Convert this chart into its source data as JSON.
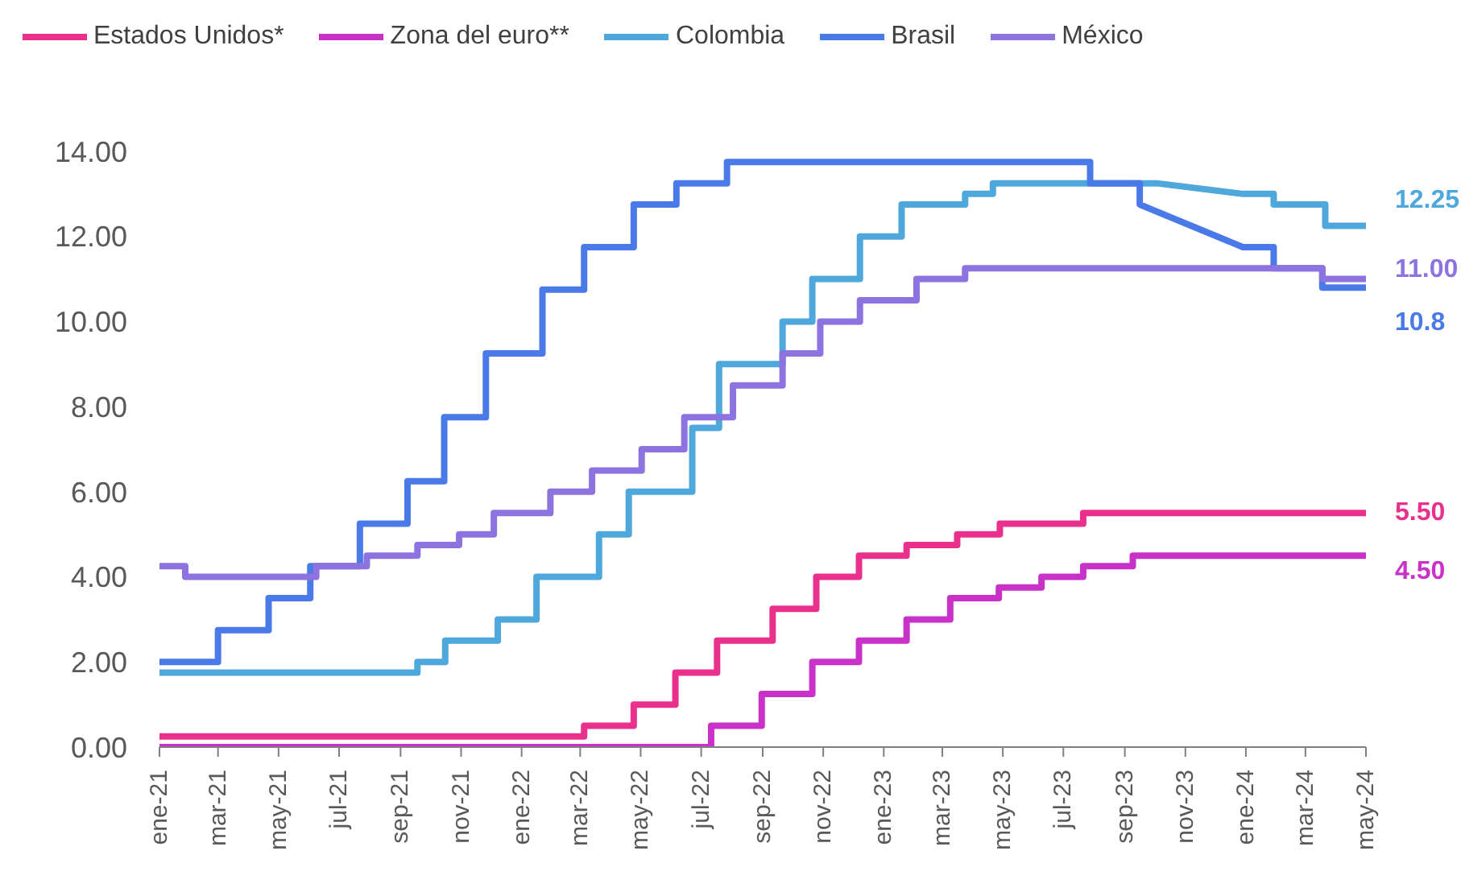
{
  "chart_data": {
    "type": "line",
    "legend": "top",
    "line_style": "solid",
    "xlim": [
      "2021-01-01",
      "2024-05-01"
    ],
    "xticks": [
      {
        "value": "2021-01-01",
        "label": "ene-21"
      },
      {
        "value": "2021-03-01",
        "label": "mar-21"
      },
      {
        "value": "2021-05-01",
        "label": "may-21"
      },
      {
        "value": "2021-07-01",
        "label": "jul-21"
      },
      {
        "value": "2021-09-01",
        "label": "sep-21"
      },
      {
        "value": "2021-11-01",
        "label": "nov-21"
      },
      {
        "value": "2022-01-01",
        "label": "ene-22"
      },
      {
        "value": "2022-03-01",
        "label": "mar-22"
      },
      {
        "value": "2022-05-01",
        "label": "may-22"
      },
      {
        "value": "2022-07-01",
        "label": "jul-22"
      },
      {
        "value": "2022-09-01",
        "label": "sep-22"
      },
      {
        "value": "2022-11-01",
        "label": "nov-22"
      },
      {
        "value": "2023-01-01",
        "label": "ene-23"
      },
      {
        "value": "2023-03-01",
        "label": "mar-23"
      },
      {
        "value": "2023-05-01",
        "label": "may-23"
      },
      {
        "value": "2023-07-01",
        "label": "jul-23"
      },
      {
        "value": "2023-09-01",
        "label": "sep-23"
      },
      {
        "value": "2023-11-01",
        "label": "nov-23"
      },
      {
        "value": "2024-01-01",
        "label": "ene-24"
      },
      {
        "value": "2024-03-01",
        "label": "mar-24"
      },
      {
        "value": "2024-05-01",
        "label": "may-24"
      }
    ],
    "ylim": [
      0,
      14
    ],
    "yticks": [
      {
        "value": 0,
        "label": "0.00"
      },
      {
        "value": 2,
        "label": "2.00"
      },
      {
        "value": 4,
        "label": "4.00"
      },
      {
        "value": 6,
        "label": "6.00"
      },
      {
        "value": 8,
        "label": "8.00"
      },
      {
        "value": 10,
        "label": "10.00"
      },
      {
        "value": 12,
        "label": "12.00"
      },
      {
        "value": 14,
        "label": "14.00"
      }
    ],
    "series": [
      {
        "name": "Estados Unidos*",
        "color": "#e8308c",
        "x": [
          "2021-01-01",
          "2022-03-05",
          "2022-03-05",
          "2022-04-24",
          "2022-04-24",
          "2022-06-05",
          "2022-06-05",
          "2022-07-17",
          "2022-07-17",
          "2022-09-11",
          "2022-09-11",
          "2022-10-25",
          "2022-10-25",
          "2022-12-07",
          "2022-12-07",
          "2023-01-24",
          "2023-01-24",
          "2023-03-16",
          "2023-03-16",
          "2023-04-28",
          "2023-04-28",
          "2023-07-21",
          "2023-07-21",
          "2024-05-01"
        ],
        "values": [
          0.25,
          0.25,
          0.5,
          0.5,
          1,
          1,
          1.75,
          1.75,
          2.5,
          2.5,
          3.25,
          3.25,
          4,
          4,
          4.5,
          4.5,
          4.75,
          4.75,
          5,
          5,
          5.25,
          5.25,
          5.5,
          5.5
        ],
        "value_labels": [
          null,
          null,
          null,
          null,
          null,
          null,
          null,
          null,
          null,
          null,
          null,
          null,
          null,
          null,
          null,
          null,
          null,
          null,
          null,
          null,
          null,
          null,
          null,
          "5.50"
        ]
      },
      {
        "name": "Zona del euro**",
        "color": "#c832c8",
        "x": [
          "2021-01-01",
          "2022-07-11",
          "2022-07-11",
          "2022-08-31",
          "2022-08-31",
          "2022-10-21",
          "2022-10-21",
          "2022-12-07",
          "2022-12-07",
          "2023-01-24",
          "2023-01-24",
          "2023-03-09",
          "2023-03-09",
          "2023-04-27",
          "2023-04-27",
          "2023-06-09",
          "2023-06-09",
          "2023-07-21",
          "2023-07-21",
          "2023-09-09",
          "2023-09-09",
          "2024-05-01"
        ],
        "values": [
          0,
          0,
          0.5,
          0.5,
          1.25,
          1.25,
          2,
          2,
          2.5,
          2.5,
          3,
          3,
          3.5,
          3.5,
          3.75,
          3.75,
          4,
          4,
          4.25,
          4.25,
          4.5,
          4.5
        ],
        "value_labels": [
          null,
          null,
          null,
          null,
          null,
          null,
          null,
          null,
          null,
          null,
          null,
          null,
          null,
          null,
          null,
          null,
          null,
          null,
          null,
          null,
          null,
          "4.50"
        ]
      },
      {
        "name": "Colombia",
        "color": "#4fa8dc",
        "x": [
          "2021-01-01",
          "2021-09-18",
          "2021-09-18",
          "2021-10-16",
          "2021-10-16",
          "2021-12-08",
          "2021-12-08",
          "2022-01-16",
          "2022-01-16",
          "2022-03-20",
          "2022-03-20",
          "2022-04-19",
          "2022-04-19",
          "2022-06-22",
          "2022-06-22",
          "2022-07-19",
          "2022-07-19",
          "2022-09-21",
          "2022-09-21",
          "2022-10-21",
          "2022-10-21",
          "2022-12-08",
          "2022-12-08",
          "2023-01-19",
          "2023-01-19",
          "2023-03-24",
          "2023-03-24",
          "2023-04-21",
          "2023-04-21",
          "2023-10-03",
          "2023-12-29",
          "2024-01-29",
          "2024-01-29",
          "2024-03-21",
          "2024-03-21",
          "2024-05-01"
        ],
        "values": [
          1.75,
          1.75,
          2,
          2,
          2.5,
          2.5,
          3,
          3,
          4,
          4,
          5,
          5,
          6,
          6,
          7.5,
          7.5,
          9,
          9,
          10,
          10,
          11,
          11,
          12,
          12,
          12.75,
          12.75,
          13,
          13,
          13.25,
          13.25,
          13,
          13,
          12.75,
          12.75,
          12.25,
          12.25
        ],
        "value_labels": [
          null,
          null,
          null,
          null,
          null,
          null,
          null,
          null,
          null,
          null,
          null,
          null,
          null,
          null,
          null,
          null,
          null,
          null,
          null,
          null,
          null,
          null,
          null,
          null,
          null,
          null,
          null,
          null,
          null,
          null,
          null,
          null,
          null,
          null,
          null,
          "12.25"
        ]
      },
      {
        "name": "Brasil",
        "color": "#4a7ae8",
        "x": [
          "2021-01-01",
          "2021-03-01",
          "2021-03-01",
          "2021-04-21",
          "2021-04-21",
          "2021-06-02",
          "2021-06-02",
          "2021-07-22",
          "2021-07-22",
          "2021-09-08",
          "2021-09-08",
          "2021-10-15",
          "2021-10-15",
          "2021-11-26",
          "2021-11-26",
          "2022-01-22",
          "2022-01-22",
          "2022-03-05",
          "2022-03-05",
          "2022-04-24",
          "2022-04-24",
          "2022-06-06",
          "2022-06-06",
          "2022-07-27",
          "2022-07-27",
          "2023-07-28",
          "2023-07-28",
          "2023-09-16",
          "2023-09-16",
          "2023-12-29",
          "2024-01-29",
          "2024-01-29",
          "2024-03-18",
          "2024-03-18",
          "2024-05-01"
        ],
        "values": [
          2,
          2,
          2.75,
          2.75,
          3.5,
          3.5,
          4.25,
          4.25,
          5.25,
          5.25,
          6.25,
          6.25,
          7.75,
          7.75,
          9.25,
          9.25,
          10.75,
          10.75,
          11.75,
          11.75,
          12.75,
          12.75,
          13.25,
          13.25,
          13.75,
          13.75,
          13.25,
          13.25,
          12.75,
          11.75,
          11.75,
          11.25,
          11.25,
          10.8,
          10.8
        ],
        "value_labels": [
          null,
          null,
          null,
          null,
          null,
          null,
          null,
          null,
          null,
          null,
          null,
          null,
          null,
          null,
          null,
          null,
          null,
          null,
          null,
          null,
          null,
          null,
          null,
          null,
          null,
          null,
          null,
          null,
          null,
          null,
          null,
          null,
          null,
          null,
          "10.8"
        ]
      },
      {
        "name": "México",
        "color": "#8c73e0",
        "x": [
          "2021-01-01",
          "2021-01-27",
          "2021-01-27",
          "2021-06-08",
          "2021-06-08",
          "2021-07-29",
          "2021-07-29",
          "2021-09-18",
          "2021-09-18",
          "2021-10-30",
          "2021-10-30",
          "2021-12-04",
          "2021-12-04",
          "2022-01-30",
          "2022-01-30",
          "2022-03-13",
          "2022-03-13",
          "2022-05-02",
          "2022-05-02",
          "2022-06-14",
          "2022-06-14",
          "2022-08-02",
          "2022-08-02",
          "2022-09-21",
          "2022-09-21",
          "2022-10-29",
          "2022-10-29",
          "2022-12-08",
          "2022-12-08",
          "2023-02-03",
          "2023-02-03",
          "2023-03-24",
          "2023-03-24",
          "2024-03-18",
          "2024-03-18",
          "2024-05-01"
        ],
        "values": [
          4.25,
          4.25,
          4,
          4,
          4.25,
          4.25,
          4.5,
          4.5,
          4.75,
          4.75,
          5,
          5,
          5.5,
          5.5,
          6,
          6,
          6.5,
          6.5,
          7,
          7,
          7.75,
          7.75,
          8.5,
          8.5,
          9.25,
          9.25,
          10,
          10,
          10.5,
          10.5,
          11,
          11,
          11.25,
          11.25,
          11,
          11
        ],
        "value_labels": [
          null,
          null,
          null,
          null,
          null,
          null,
          null,
          null,
          null,
          null,
          null,
          null,
          null,
          null,
          null,
          null,
          null,
          null,
          null,
          null,
          null,
          null,
          null,
          null,
          null,
          null,
          null,
          null,
          null,
          null,
          null,
          null,
          null,
          null,
          null,
          "11.00"
        ]
      }
    ]
  }
}
